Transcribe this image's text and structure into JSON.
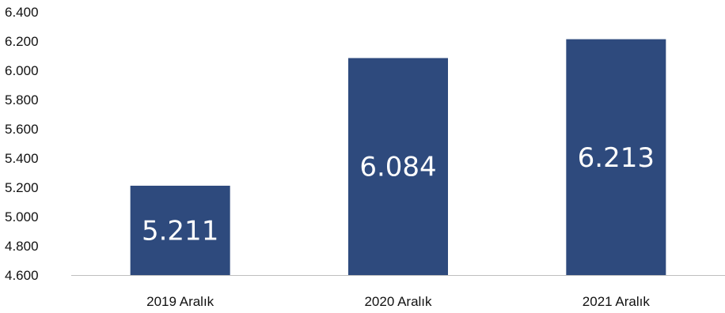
{
  "chart_data": {
    "type": "bar",
    "categories": [
      "2019 Aralık",
      "2020 Aralık",
      "2021 Aralık"
    ],
    "values": [
      5211,
      6084,
      6213
    ],
    "value_labels": [
      "5.211",
      "6.084",
      "6.213"
    ],
    "y_ticks": [
      4600,
      4800,
      5000,
      5200,
      5400,
      5600,
      5800,
      6000,
      6200,
      6400
    ],
    "y_tick_labels": [
      "4.600",
      "4.800",
      "5.000",
      "5.200",
      "5.400",
      "5.600",
      "5.800",
      "6.000",
      "6.200",
      "6.400"
    ],
    "ylim": [
      4600,
      6400
    ],
    "grid": false,
    "legend": "none",
    "title": "",
    "xlabel": "",
    "ylabel": ""
  },
  "colors": {
    "bar": "#2e4a7d",
    "axis": "#bfbfbf",
    "value_text": "#ffffff",
    "label_text": "#111111"
  }
}
